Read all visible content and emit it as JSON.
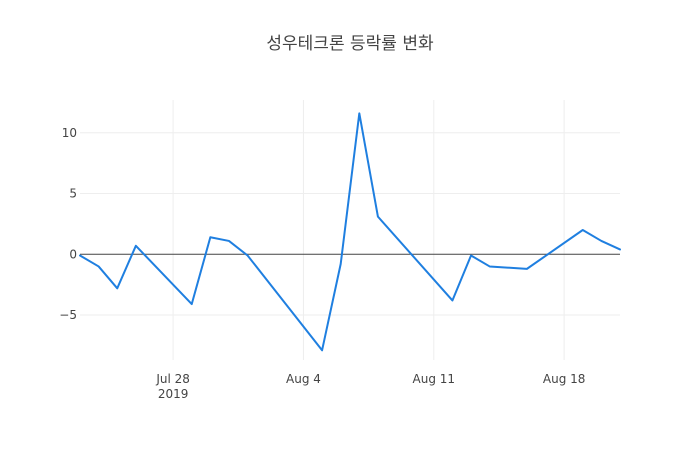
{
  "chart_data": {
    "type": "line",
    "title": "성우테크론 등락률 변화",
    "xlabel": "",
    "ylabel": "",
    "x_axis_type": "date",
    "x_range": [
      "2019-07-23",
      "2019-08-21"
    ],
    "x_ticks": [
      {
        "date": "2019-07-28",
        "label": "Jul 28",
        "sublabel": "2019"
      },
      {
        "date": "2019-08-04",
        "label": "Aug 4",
        "sublabel": ""
      },
      {
        "date": "2019-08-11",
        "label": "Aug 11",
        "sublabel": ""
      },
      {
        "date": "2019-08-18",
        "label": "Aug 18",
        "sublabel": ""
      }
    ],
    "y_range": [
      -8.7,
      12.7
    ],
    "y_ticks": [
      {
        "value": -5,
        "label": "−5"
      },
      {
        "value": 0,
        "label": "0"
      },
      {
        "value": 5,
        "label": "5"
      },
      {
        "value": 10,
        "label": "10"
      }
    ],
    "grid": true,
    "zero_line": true,
    "series": [
      {
        "color": "#1f7fe0",
        "points": [
          {
            "x": "2019-07-23",
            "y": -0.1
          },
          {
            "x": "2019-07-24",
            "y": -1.0
          },
          {
            "x": "2019-07-25",
            "y": -2.8
          },
          {
            "x": "2019-07-26",
            "y": 0.7
          },
          {
            "x": "2019-07-29",
            "y": -4.1
          },
          {
            "x": "2019-07-30",
            "y": 1.4
          },
          {
            "x": "2019-07-31",
            "y": 1.1
          },
          {
            "x": "2019-08-01",
            "y": -0.1
          },
          {
            "x": "2019-08-05",
            "y": -7.9
          },
          {
            "x": "2019-08-06",
            "y": -0.8
          },
          {
            "x": "2019-08-07",
            "y": 11.6
          },
          {
            "x": "2019-08-08",
            "y": 3.1
          },
          {
            "x": "2019-08-12",
            "y": -3.8
          },
          {
            "x": "2019-08-13",
            "y": -0.1
          },
          {
            "x": "2019-08-14",
            "y": -1.0
          },
          {
            "x": "2019-08-16",
            "y": -1.2
          },
          {
            "x": "2019-08-19",
            "y": 2.0
          },
          {
            "x": "2019-08-20",
            "y": 1.1
          },
          {
            "x": "2019-08-21",
            "y": 0.4
          }
        ]
      }
    ]
  }
}
